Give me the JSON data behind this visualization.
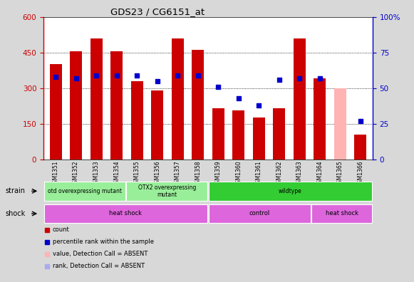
{
  "title": "GDS23 / CG6151_at",
  "samples": [
    "GSM1351",
    "GSM1352",
    "GSM1353",
    "GSM1354",
    "GSM1355",
    "GSM1356",
    "GSM1357",
    "GSM1358",
    "GSM1359",
    "GSM1360",
    "GSM1361",
    "GSM1362",
    "GSM1363",
    "GSM1364",
    "GSM1365",
    "GSM1366"
  ],
  "counts": [
    400,
    455,
    510,
    455,
    330,
    290,
    510,
    460,
    215,
    205,
    175,
    215,
    510,
    340,
    300,
    105
  ],
  "percentile_ranks": [
    58,
    57,
    59,
    59,
    59,
    55,
    59,
    59,
    51,
    43,
    38,
    56,
    57,
    57,
    null,
    27
  ],
  "absent_flags": [
    false,
    false,
    false,
    false,
    false,
    false,
    false,
    false,
    false,
    false,
    false,
    false,
    false,
    false,
    true,
    false
  ],
  "ylim_left": [
    0,
    600
  ],
  "ylim_right": [
    0,
    100
  ],
  "yticks_left": [
    0,
    150,
    300,
    450,
    600
  ],
  "yticks_right": [
    0,
    25,
    50,
    75,
    100
  ],
  "bar_color": "#cc0000",
  "bar_color_absent": "#ffb3b3",
  "dot_color": "#0000cc",
  "dot_color_absent": "#aaaaee",
  "background_color": "#d8d8d8",
  "plot_bg": "#ffffff",
  "strain_configs": [
    {
      "text": "otd overexpressing mutant",
      "start": 0,
      "end": 4,
      "color": "#99ee99"
    },
    {
      "text": "OTX2 overexpressing\nmutant",
      "start": 4,
      "end": 8,
      "color": "#99ee99"
    },
    {
      "text": "wildtype",
      "start": 8,
      "end": 16,
      "color": "#33cc33"
    }
  ],
  "shock_configs": [
    {
      "text": "heat shock",
      "start": 0,
      "end": 8,
      "color": "#dd66dd"
    },
    {
      "text": "control",
      "start": 8,
      "end": 13,
      "color": "#dd66dd"
    },
    {
      "text": "heat shock",
      "start": 13,
      "end": 16,
      "color": "#dd66dd"
    }
  ],
  "legend_items": [
    {
      "label": "count",
      "color": "#cc0000"
    },
    {
      "label": "percentile rank within the sample",
      "color": "#0000cc"
    },
    {
      "label": "value, Detection Call = ABSENT",
      "color": "#ffb3b3"
    },
    {
      "label": "rank, Detection Call = ABSENT",
      "color": "#aaaaee"
    }
  ],
  "grid_yticks": [
    150,
    300,
    450
  ]
}
